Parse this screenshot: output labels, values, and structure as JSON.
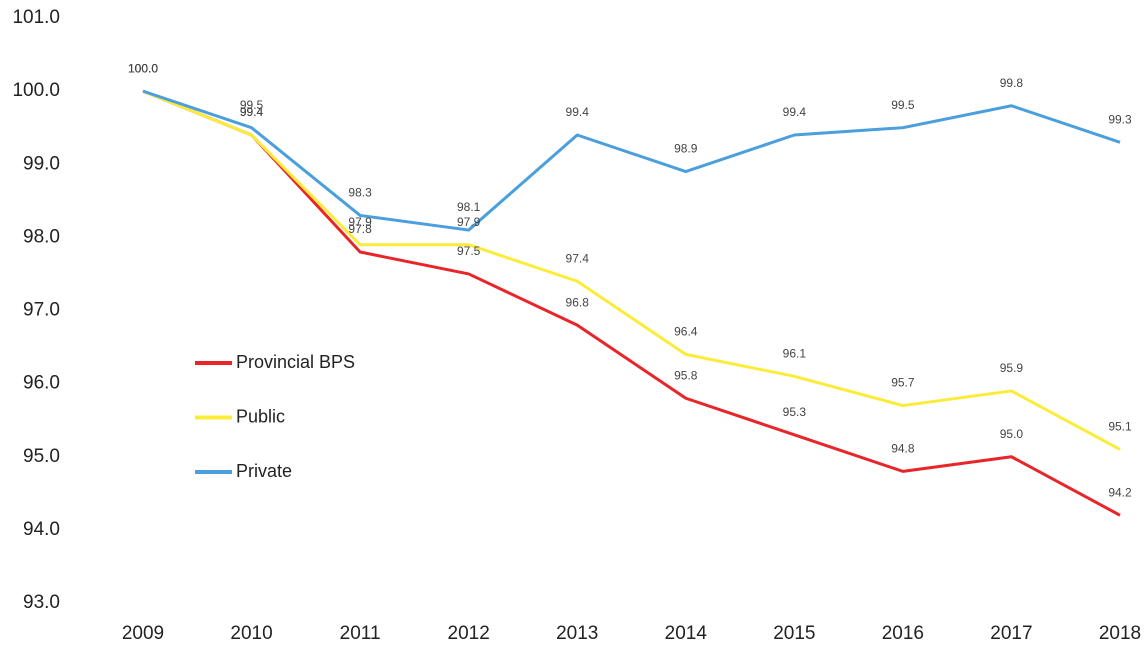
{
  "chart_data": {
    "type": "line",
    "x": [
      "2009",
      "2010",
      "2011",
      "2012",
      "2013",
      "2014",
      "2015",
      "2016",
      "2017",
      "2018"
    ],
    "series": [
      {
        "name": "Provincial BPS",
        "color": "#e8262a",
        "values": [
          100.0,
          99.4,
          97.8,
          97.5,
          96.8,
          95.8,
          95.3,
          94.8,
          95.0,
          94.2
        ],
        "value_labels": [
          "100.0",
          "99.4",
          "97.8",
          "97.5",
          "96.8",
          "95.8",
          "95.3",
          "94.8",
          "95.0",
          "94.2"
        ]
      },
      {
        "name": "Public",
        "color": "#fcec3a",
        "values": [
          100.0,
          99.4,
          97.9,
          97.9,
          97.4,
          96.4,
          96.1,
          95.7,
          95.9,
          95.1
        ],
        "value_labels": [
          "100.0",
          "99.4",
          "97.9",
          "97.9",
          "97.4",
          "96.4",
          "96.1",
          "95.7",
          "95.9",
          "95.1"
        ]
      },
      {
        "name": "Private",
        "color": "#4a9fdc",
        "values": [
          100.0,
          99.5,
          98.3,
          98.1,
          99.4,
          98.9,
          99.4,
          99.5,
          99.8,
          99.3
        ],
        "value_labels": [
          "100.0",
          "99.5",
          "98.3",
          "98.1",
          "99.4",
          "98.9",
          "99.4",
          "99.5",
          "99.8",
          "99.3"
        ]
      }
    ],
    "ylim": [
      93,
      101
    ],
    "yticks": [
      {
        "value": 93,
        "label": "93.0"
      },
      {
        "value": 94,
        "label": "94.0"
      },
      {
        "value": 95,
        "label": "95.0"
      },
      {
        "value": 96,
        "label": "96.0"
      },
      {
        "value": 97,
        "label": "97.0"
      },
      {
        "value": 98,
        "label": "98.0"
      },
      {
        "value": 99,
        "label": "99.0"
      },
      {
        "value": 100,
        "label": "100.0"
      },
      {
        "value": 101,
        "label": "101.0"
      }
    ],
    "grid": false,
    "legend": "left"
  }
}
